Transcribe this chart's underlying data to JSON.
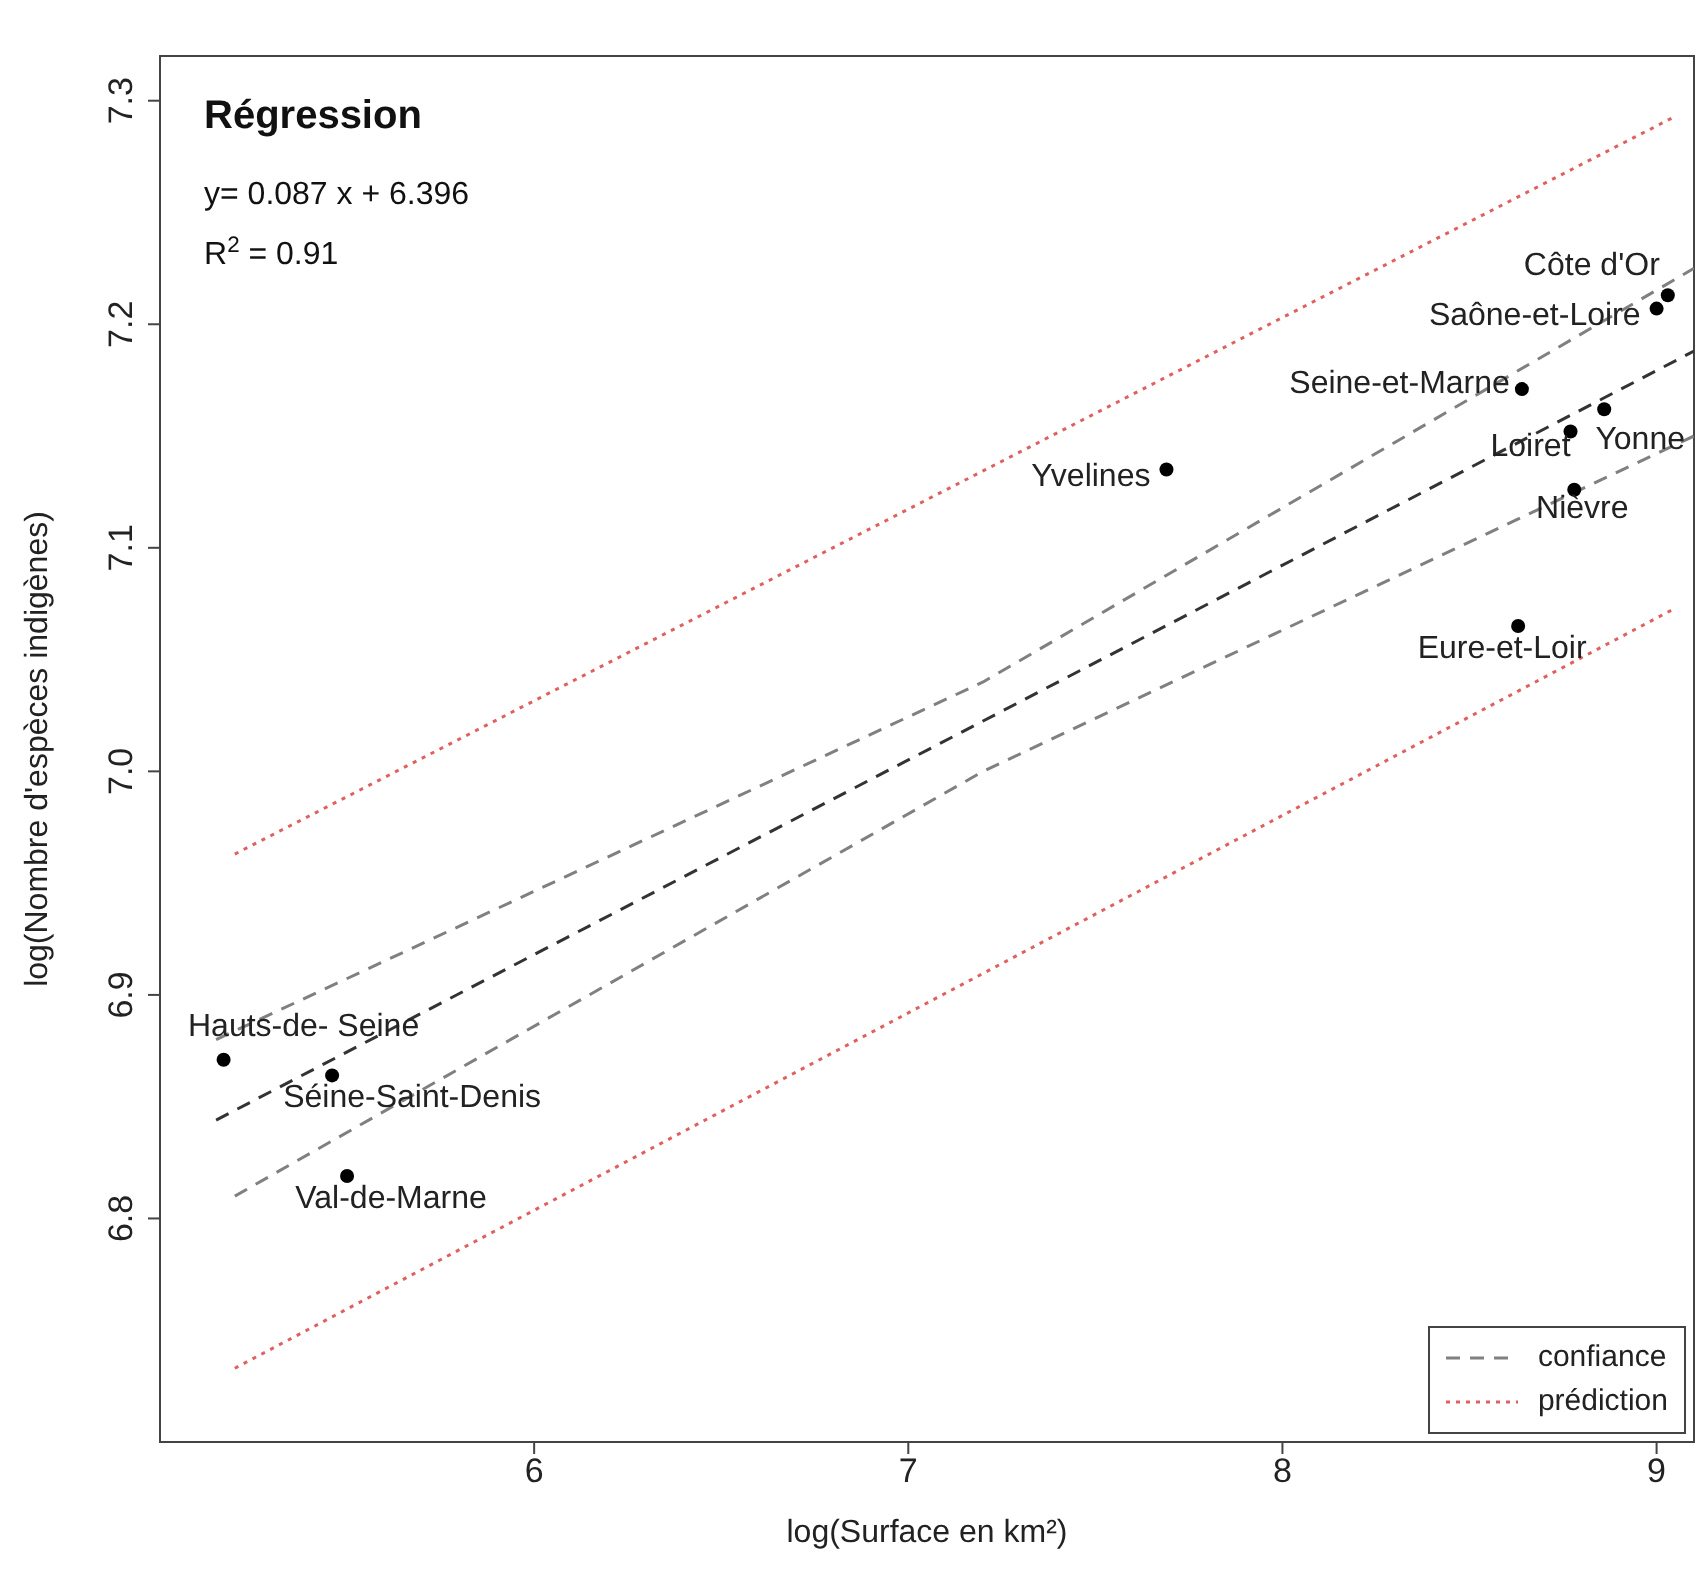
{
  "chart_data": {
    "type": "scatter",
    "xlabel": "log(Surface en km²)",
    "ylabel": "log(Nombre d'espèces indigènes)",
    "xlim": [
      5,
      9.1
    ],
    "xticks": [
      6,
      7,
      8,
      9
    ],
    "ylim": [
      6.7,
      7.32
    ],
    "yticks": [
      6.8,
      6.9,
      {
        "value": 7,
        "label": "7.0"
      },
      7.1,
      7.2,
      7.3
    ],
    "grid": false,
    "legend": "bottom right",
    "series": [
      {
        "type": "scatter",
        "color": "#000000",
        "marker": "circle",
        "x": [
          9.03,
          9.0,
          8.64,
          8.86,
          8.77,
          8.78,
          8.63,
          7.69,
          5.17,
          5.46,
          5.5
        ],
        "values": [
          7.213,
          7.207,
          7.171,
          7.162,
          7.152,
          7.126,
          7.065,
          7.135,
          6.871,
          6.864,
          6.819
        ]
      },
      {
        "type": "line",
        "color": "#333333",
        "line_style": "dashed",
        "x": [
          5.15,
          9.1
        ],
        "values": [
          6.844,
          7.188
        ]
      },
      {
        "type": "line",
        "name": "confiance",
        "color": "#808080",
        "line_style": "dashed",
        "x": [
          5.15,
          7.2,
          9.1
        ],
        "values": [
          6.88,
          7.04,
          7.225
        ]
      },
      {
        "type": "line",
        "color": "#808080",
        "line_style": "dashed",
        "x": [
          5.2,
          7.2,
          9.1
        ],
        "values": [
          6.81,
          7.0,
          7.15
        ]
      },
      {
        "type": "line",
        "name": "prédiction",
        "color": "#e06060",
        "line_style": "dotted",
        "x": [
          5.2,
          9.05
        ],
        "values": [
          6.963,
          7.293
        ]
      },
      {
        "type": "line",
        "color": "#e06060",
        "line_style": "dotted",
        "x": [
          5.2,
          9.05
        ],
        "values": [
          6.733,
          7.073
        ]
      }
    ],
    "annotations": [
      "Régression",
      "y=  0.087 x + 6.396",
      "R$^{2}$ = 0.91",
      {
        "text": "Côte d'Or",
        "x": 9.03,
        "y": 7.213
      },
      {
        "text": "Saône-et-Loire",
        "x": 9.0,
        "y": 7.207
      },
      {
        "text": "Seine-et-Marne",
        "x": 8.64,
        "y": 7.171
      },
      {
        "text": "Yonne",
        "x": 8.86,
        "y": 7.162
      },
      {
        "text": "Loiret",
        "x": 8.77,
        "y": 7.152
      },
      {
        "text": "Nièvre",
        "x": 8.78,
        "y": 7.126
      },
      {
        "text": "Eure-et-Loir",
        "x": 8.63,
        "y": 7.065
      },
      {
        "text": "Yvelines",
        "x": 7.69,
        "y": 7.135
      },
      {
        "text": "Hauts-de- Seine",
        "x": 5.17,
        "y": 6.871
      },
      {
        "text": "Séine-Saint-Denis",
        "x": 5.46,
        "y": 6.864
      },
      {
        "text": "Val-de-Marne",
        "x": 5.5,
        "y": 6.819
      }
    ]
  }
}
